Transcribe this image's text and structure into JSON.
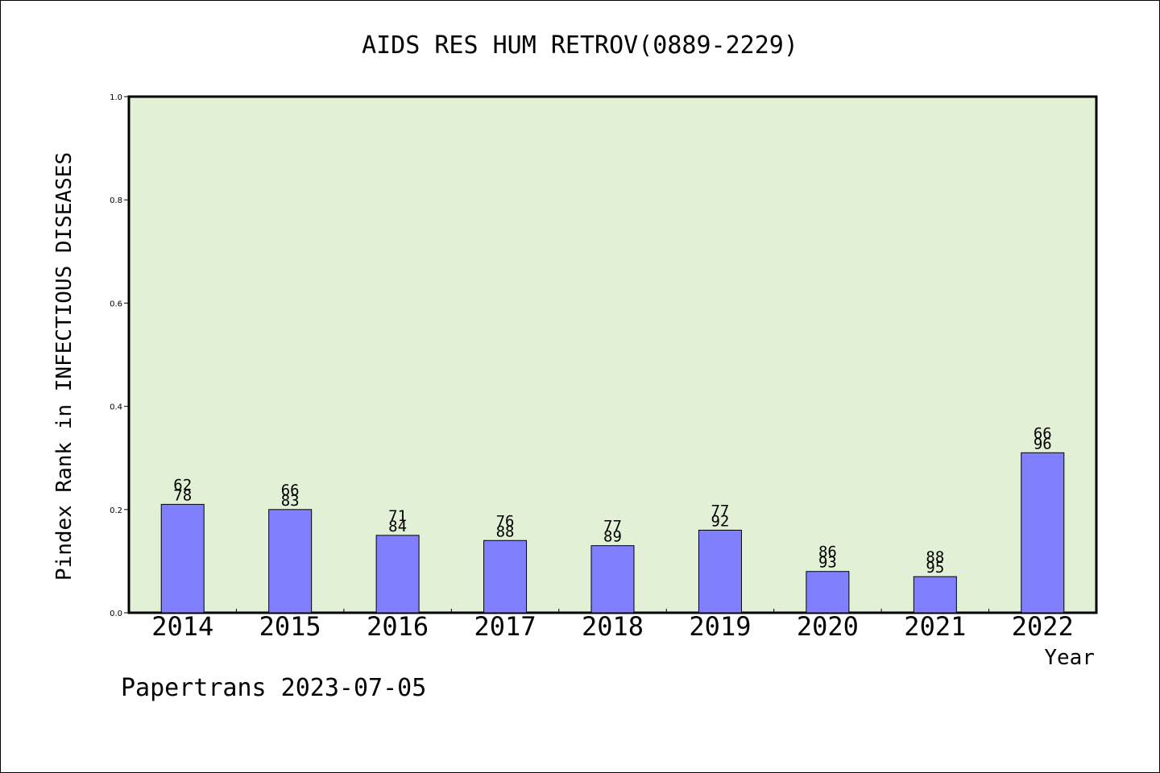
{
  "chart_data": {
    "type": "bar",
    "title": "AIDS RES HUM RETROV(0889-2229)",
    "xlabel": "Year",
    "ylabel": "Pindex Rank in INFECTIOUS DISEASES",
    "ylim": [
      0,
      1.0
    ],
    "yticks": [
      "0.0",
      "0.2",
      "0.4",
      "0.6",
      "0.8",
      "1.0"
    ],
    "categories": [
      "2014",
      "2015",
      "2016",
      "2017",
      "2018",
      "2019",
      "2020",
      "2021",
      "2022"
    ],
    "values": [
      0.21,
      0.2,
      0.15,
      0.14,
      0.13,
      0.16,
      0.08,
      0.07,
      0.31
    ],
    "rank_labels": [
      "62",
      "66",
      "71",
      "76",
      "77",
      "77",
      "86",
      "88",
      "66"
    ],
    "total_labels": [
      "78",
      "83",
      "84",
      "88",
      "89",
      "92",
      "93",
      "95",
      "96"
    ],
    "grid": false,
    "colors": {
      "plot_background": "#e2f0d6",
      "bar_fill": "#8080ff",
      "bar_stroke": "#000000"
    }
  },
  "footer": "Papertrans 2023-07-05"
}
